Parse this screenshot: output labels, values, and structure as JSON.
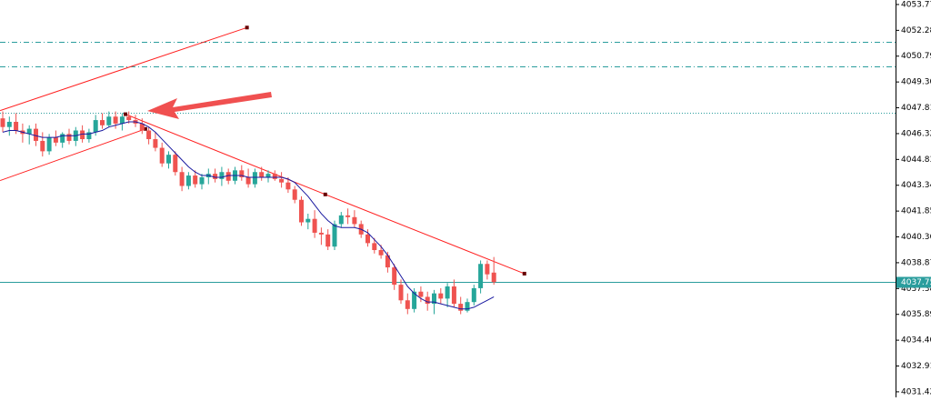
{
  "chart_data": {
    "type": "candlestick",
    "bull_color": "#26a69a",
    "bear_color": "#ef5350",
    "open": [
      4047.2,
      4046.7,
      4047.0,
      4046.5,
      4046.3,
      4046.6,
      4045.9,
      4045.3,
      4046.1,
      4045.8,
      4046.3,
      4045.9,
      4046.5,
      4046.0,
      4046.4,
      4047.1,
      4046.8,
      4047.3,
      4046.9,
      4047.3,
      4047.1,
      4046.9,
      4046.5,
      4046.0,
      4045.5,
      4044.6,
      4045.1,
      4044.1,
      4043.3,
      4043.9,
      4043.4,
      4043.8,
      4044.0,
      4043.7,
      4044.1,
      4043.6,
      4044.2,
      4043.8,
      4043.4,
      4044.1,
      4043.8,
      4044.0,
      4043.7,
      4043.5,
      4043.1,
      4042.5,
      4041.2,
      4041.4,
      4040.6,
      4040.5,
      4039.8,
      4041.1,
      4041.6,
      4041.5,
      4041.1,
      4040.5,
      4040.0,
      4039.6,
      4039.3,
      4038.6,
      4037.6,
      4036.7,
      4036.2,
      4037.2,
      4036.9,
      4036.5,
      4037.1,
      4036.8,
      4037.5,
      4036.5,
      4036.1,
      4036.6,
      4037.4,
      4038.8,
      4038.3
    ],
    "high": [
      4047.6,
      4047.3,
      4047.5,
      4046.9,
      4046.8,
      4046.9,
      4046.4,
      4046.3,
      4046.5,
      4046.4,
      4046.6,
      4046.7,
      4046.8,
      4046.6,
      4047.4,
      4047.5,
      4047.6,
      4047.6,
      4047.5,
      4047.6,
      4047.4,
      4047.2,
      4046.7,
      4046.4,
      4045.8,
      4045.3,
      4045.3,
      4044.4,
      4044.1,
      4044.2,
      4044.0,
      4044.3,
      4044.3,
      4044.4,
      4044.3,
      4044.4,
      4044.5,
      4044.3,
      4044.3,
      4044.4,
      4044.2,
      4044.2,
      4044.1,
      4043.8,
      4043.3,
      4042.7,
      4041.7,
      4041.9,
      4040.9,
      4040.8,
      4041.3,
      4041.8,
      4042.0,
      4041.9,
      4041.3,
      4040.8,
      4040.3,
      4039.9,
      4039.5,
      4038.8,
      4037.9,
      4037.1,
      4037.4,
      4037.5,
      4037.2,
      4037.3,
      4037.4,
      4037.7,
      4037.9,
      4036.9,
      4036.8,
      4037.6,
      4039.0,
      4039.0,
      4039.2
    ],
    "low": [
      4046.4,
      4046.2,
      4046.3,
      4045.8,
      4045.7,
      4045.6,
      4045.0,
      4045.1,
      4045.6,
      4045.5,
      4045.7,
      4045.6,
      4045.8,
      4045.8,
      4046.2,
      4046.6,
      4046.7,
      4046.6,
      4046.5,
      4046.9,
      4046.7,
      4046.3,
      4045.7,
      4045.3,
      4044.4,
      4044.3,
      4043.9,
      4043.0,
      4043.1,
      4043.2,
      4043.1,
      4043.4,
      4043.5,
      4043.3,
      4043.4,
      4043.4,
      4043.6,
      4043.2,
      4043.2,
      4043.6,
      4043.5,
      4043.6,
      4043.2,
      4042.9,
      4042.3,
      4041.0,
      4040.8,
      4040.3,
      4039.9,
      4039.6,
      4039.6,
      4040.9,
      4041.1,
      4040.9,
      4040.3,
      4039.8,
      4039.4,
      4039.1,
      4038.3,
      4037.3,
      4036.5,
      4035.9,
      4036.0,
      4036.6,
      4036.1,
      4035.9,
      4036.5,
      4036.3,
      4036.3,
      4035.9,
      4036.0,
      4036.4,
      4037.1,
      4037.9,
      4037.6
    ],
    "close": [
      4046.7,
      4047.0,
      4046.5,
      4046.3,
      4046.6,
      4045.9,
      4045.3,
      4046.1,
      4045.8,
      4046.3,
      4045.9,
      4046.5,
      4046.0,
      4046.4,
      4047.1,
      4046.8,
      4047.3,
      4046.9,
      4047.3,
      4047.1,
      4046.9,
      4046.5,
      4046.0,
      4045.5,
      4044.6,
      4045.1,
      4044.1,
      4043.3,
      4043.9,
      4043.4,
      4043.8,
      4044.0,
      4043.7,
      4044.1,
      4043.6,
      4044.2,
      4043.8,
      4043.4,
      4044.1,
      4043.8,
      4044.0,
      4043.7,
      4043.5,
      4043.1,
      4042.5,
      4041.2,
      4041.4,
      4040.6,
      4040.5,
      4039.8,
      4041.1,
      4041.6,
      4041.5,
      4041.1,
      4040.5,
      4040.0,
      4039.6,
      4039.3,
      4038.6,
      4037.6,
      4036.7,
      4036.2,
      4037.2,
      4036.9,
      4036.5,
      4037.1,
      4036.8,
      4037.5,
      4036.5,
      4036.1,
      4036.6,
      4037.4,
      4038.8,
      4038.2,
      4037.75
    ],
    "moving_average": {
      "color": "#1a1aa0",
      "values": [
        4046.4,
        4046.5,
        4046.5,
        4046.4,
        4046.3,
        4046.2,
        4046.1,
        4046.1,
        4046.1,
        4046.2,
        4046.2,
        4046.2,
        4046.3,
        4046.3,
        4046.4,
        4046.5,
        4046.7,
        4046.8,
        4046.9,
        4047.0,
        4047.0,
        4046.9,
        4046.7,
        4046.4,
        4046.0,
        4045.6,
        4045.2,
        4044.8,
        4044.4,
        4044.1,
        4043.9,
        4043.9,
        4043.8,
        4043.8,
        4043.9,
        4043.9,
        4043.9,
        4043.8,
        4043.8,
        4043.8,
        4043.8,
        4043.8,
        4043.8,
        4043.7,
        4043.5,
        4043.1,
        4042.7,
        4042.2,
        4041.7,
        4041.3,
        4041.0,
        4040.9,
        4040.9,
        4040.9,
        4040.8,
        4040.6,
        4040.2,
        4039.8,
        4039.3,
        4038.7,
        4038.1,
        4037.5,
        4037.1,
        4036.8,
        4036.6,
        4036.6,
        4036.5,
        4036.4,
        4036.3,
        4036.2,
        4036.2,
        4036.3,
        4036.5,
        4036.7,
        4036.9
      ]
    },
    "levels": [
      {
        "value": 4051.64,
        "style": "dashdot"
      },
      {
        "value": 4050.2,
        "style": "dashdot"
      },
      {
        "value": 4047.5,
        "style": "dotted"
      }
    ],
    "level_color": "#2a9d9d",
    "last_price": 4037.75,
    "trendline_color": "#ff2020",
    "trendlines": [
      {
        "x": [
          -0.4,
          36.8
        ],
        "y": [
          4047.65,
          4052.44
        ]
      },
      {
        "x": [
          -0.4,
          21.5
        ],
        "y": [
          4043.61,
          4046.59
        ]
      },
      {
        "x": [
          18.5,
          48.6,
          78.6
        ],
        "y": [
          4047.44,
          4042.81,
          4038.24
        ]
      }
    ],
    "ylim": [
      4031.1,
      4054.03
    ],
    "yticks": [
      4053.77,
      4052.28,
      4050.79,
      {
        "value": 4049.3,
        "label": "4049.30"
      },
      4047.81,
      4046.32,
      4044.83,
      4043.34,
      4041.85,
      4040.36,
      4038.87,
      4037.38,
      4035.89,
      {
        "value": 4034.4,
        "label": "4034.40"
      },
      4032.91,
      4031.42
    ]
  }
}
